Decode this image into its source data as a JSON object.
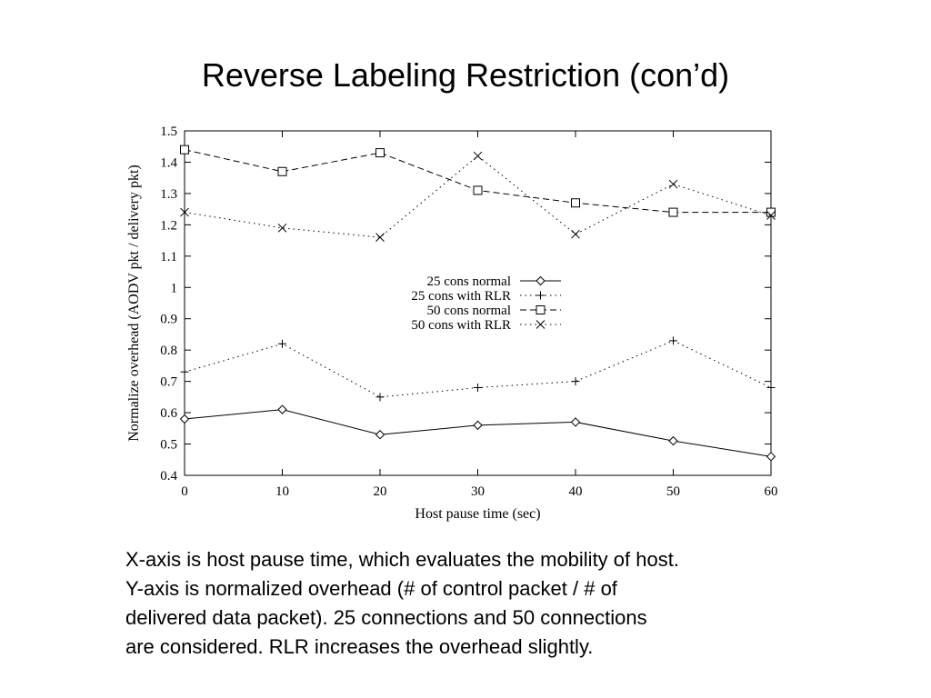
{
  "slide": {
    "title": "Reverse Labeling Restriction (con’d)",
    "caption_lines": [
      "X-axis is host pause time, which evaluates the mobility of host.",
      "Y-axis is normalized overhead (# of control packet / # of",
      "delivered data packet). 25 connections and 50 connections",
      "are considered. RLR increases the overhead slightly."
    ]
  },
  "chart_data": {
    "type": "line",
    "xlabel": "Host pause time (sec)",
    "ylabel": "Normalize overhead (AODV pkt / delivery pkt)",
    "xlim": [
      0,
      60
    ],
    "ylim": [
      0.4,
      1.5
    ],
    "x_ticks": [
      0,
      10,
      20,
      30,
      40,
      50,
      60
    ],
    "x_tick_labels": [
      "0",
      "10",
      "20",
      "30",
      "40",
      "50",
      "60"
    ],
    "y_ticks": [
      0.4,
      0.5,
      0.6,
      0.7,
      0.8,
      0.9,
      1.0,
      1.1,
      1.2,
      1.3,
      1.4,
      1.5
    ],
    "y_tick_labels": [
      "0.4",
      "0.5",
      "0.6",
      "0.7",
      "0.8",
      "0.9",
      "1",
      "1.1",
      "1.2",
      "1.3",
      "1.4",
      "1.5"
    ],
    "grid": false,
    "legend_position": "center-right",
    "x": [
      0,
      10,
      20,
      30,
      40,
      50,
      60
    ],
    "series": [
      {
        "name": "25 cons normal",
        "values": [
          0.58,
          0.61,
          0.53,
          0.56,
          0.57,
          0.51,
          0.46
        ],
        "marker": "diamond",
        "line": "solid"
      },
      {
        "name": "25 cons with RLR",
        "values": [
          0.73,
          0.82,
          0.65,
          0.68,
          0.7,
          0.83,
          0.68
        ],
        "marker": "plus",
        "line": "dotted"
      },
      {
        "name": "50 cons normal",
        "values": [
          1.44,
          1.37,
          1.43,
          1.31,
          1.27,
          1.24,
          1.24
        ],
        "marker": "square",
        "line": "dashed"
      },
      {
        "name": "50 cons with RLR",
        "values": [
          1.24,
          1.19,
          1.16,
          1.42,
          1.17,
          1.33,
          1.23
        ],
        "marker": "cross",
        "line": "dotted"
      }
    ]
  }
}
